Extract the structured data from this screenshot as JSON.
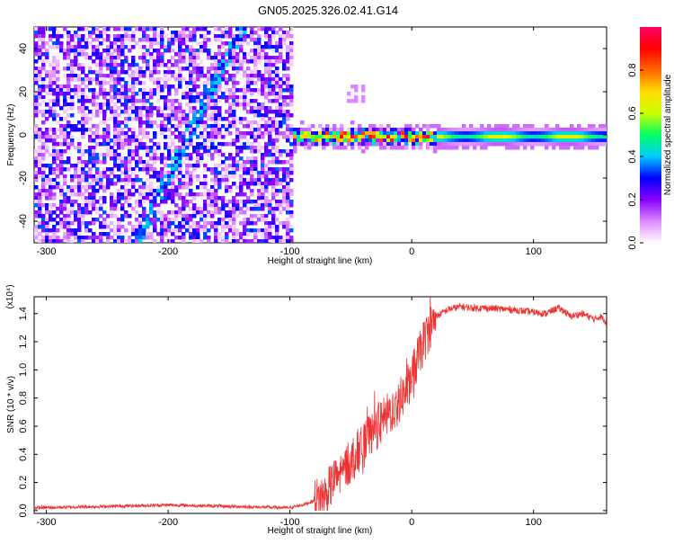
{
  "title": "GN05.2025.326.02.41.G14",
  "chart_data": [
    {
      "type": "heatmap",
      "xlabel": "Height of straight line (km)",
      "ylabel": "Frequency (Hz)",
      "xlim": [
        -310,
        160
      ],
      "ylim": [
        -50,
        50
      ],
      "xticks": [
        -300,
        -200,
        -100,
        0,
        100
      ],
      "yticks": [
        -40,
        -20,
        0,
        20,
        40
      ],
      "colorbar": {
        "label": "Normalized spectral amplitude",
        "range": [
          0,
          1
        ],
        "ticks": [
          0.0,
          0.2,
          0.4,
          0.6,
          0.8
        ],
        "colors": [
          "#ffffff",
          "#dd88ff",
          "#8800ff",
          "#0000ff",
          "#00ccff",
          "#00ff66",
          "#ccff00",
          "#ffdd00",
          "#ff6600",
          "#ff0000",
          "#ff0066"
        ]
      },
      "noise_region_x": [
        -310,
        -100
      ],
      "signal_band": {
        "x": [
          -100,
          160
        ],
        "center_freq": 0,
        "half_width": 2
      }
    },
    {
      "type": "line",
      "xlabel": "Height of straight line (km)",
      "ylabel": "SNR (10 * v/v)",
      "y_multiplier": "(x10⁴)",
      "xlim": [
        -310,
        160
      ],
      "ylim": [
        -0.02,
        1.52
      ],
      "xticks": [
        -300,
        -200,
        -100,
        0,
        100
      ],
      "yticks": [
        0.0,
        0.2,
        0.4,
        0.6,
        0.8,
        1.0,
        1.2,
        1.4
      ],
      "line_color": "#ee3333",
      "series": [
        {
          "x": [
            -310,
            -250,
            -200,
            -150,
            -100,
            -90,
            -80,
            -70,
            -65,
            -60,
            -55,
            -50,
            -45,
            -40,
            -35,
            -30,
            -25,
            -20,
            -15,
            -10,
            -5,
            0,
            5,
            10,
            15,
            20,
            30,
            40,
            50,
            60,
            80,
            100,
            110,
            120,
            125,
            130,
            140,
            150,
            155,
            160
          ],
          "y": [
            0.02,
            0.03,
            0.04,
            0.03,
            0.02,
            0.04,
            0.07,
            0.12,
            0.2,
            0.25,
            0.3,
            0.35,
            0.42,
            0.45,
            0.52,
            0.58,
            0.62,
            0.68,
            0.72,
            0.78,
            0.85,
            0.95,
            1.08,
            1.2,
            1.3,
            1.38,
            1.43,
            1.45,
            1.44,
            1.44,
            1.43,
            1.41,
            1.4,
            1.44,
            1.42,
            1.38,
            1.4,
            1.36,
            1.38,
            1.34
          ]
        }
      ]
    }
  ]
}
